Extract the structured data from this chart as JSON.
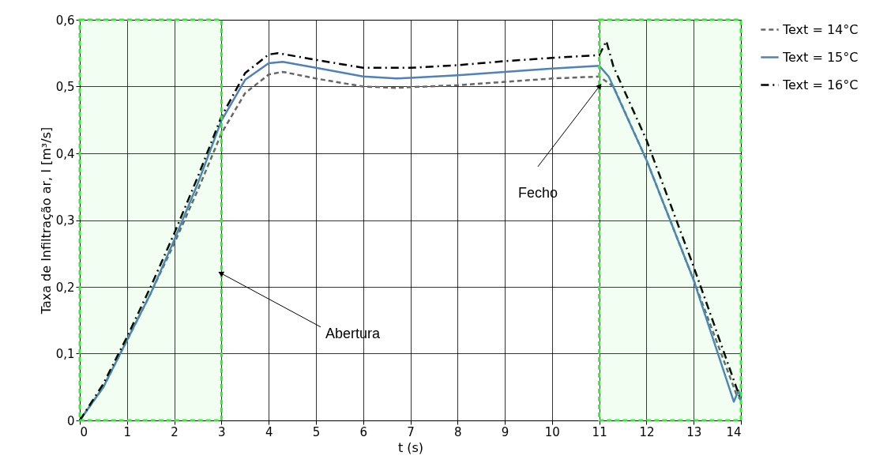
{
  "chart_data": {
    "type": "line",
    "xlabel": "t (s)",
    "ylabel": "Taxa de Infiltração ar, I [m³/s]",
    "xlim": [
      0,
      14
    ],
    "xticks": [
      0,
      1,
      2,
      3,
      4,
      5,
      6,
      7,
      8,
      9,
      10,
      11,
      12,
      13,
      14
    ],
    "ylim": [
      0,
      0.6
    ],
    "yticks": [
      0,
      {
        "value": 0.1,
        "label": "0,1"
      },
      {
        "value": 0.2,
        "label": "0,2"
      },
      {
        "value": 0.3,
        "label": "0,3"
      },
      {
        "value": 0.4,
        "label": "0,4"
      },
      {
        "value": 0.5,
        "label": "0,5"
      },
      {
        "value": 0.6,
        "label": "0,6"
      }
    ],
    "grid": true,
    "legend": "top right",
    "marker": "none",
    "series": [
      {
        "name": "Text = 14°C",
        "color": "#666666",
        "line_style": "dashed",
        "x": [
          0,
          0.5,
          1,
          1.5,
          2,
          2.5,
          3,
          3.5,
          4,
          4.3,
          5,
          6,
          6.7,
          7,
          8,
          9,
          10,
          11,
          11.3,
          12,
          13,
          13.9,
          14
        ],
        "values": [
          0,
          0.05,
          0.12,
          0.19,
          0.265,
          0.345,
          0.43,
          0.49,
          0.518,
          0.522,
          0.512,
          0.5,
          0.498,
          0.499,
          0.502,
          0.507,
          0.512,
          0.515,
          0.5,
          0.39,
          0.21,
          0.04,
          0.03
        ]
      },
      {
        "name": "Text = 15°C",
        "color": "#4f81bd",
        "line_style": "solid",
        "x": [
          0,
          0.5,
          1,
          1.5,
          2,
          2.5,
          3,
          3.5,
          4,
          4.3,
          5,
          6,
          6.7,
          7,
          8,
          9,
          10,
          11,
          11.2,
          12,
          13,
          13.85,
          13.95,
          14
        ],
        "values": [
          0,
          0.05,
          0.12,
          0.19,
          0.27,
          0.355,
          0.449,
          0.51,
          0.535,
          0.537,
          0.528,
          0.515,
          0.512,
          0.513,
          0.517,
          0.522,
          0.527,
          0.531,
          0.515,
          0.39,
          0.21,
          0.028,
          0.045,
          0.03
        ]
      },
      {
        "name": "Text = 16°C",
        "color": "#000000",
        "line_style": "dashdot",
        "x": [
          0,
          0.5,
          1,
          1.5,
          2,
          2.5,
          3,
          3.5,
          4,
          4.2,
          5,
          6,
          7,
          8,
          9,
          10,
          11,
          11.15,
          11.3,
          12,
          13,
          13.9,
          14
        ],
        "values": [
          0,
          0.055,
          0.125,
          0.2,
          0.28,
          0.365,
          0.455,
          0.52,
          0.548,
          0.55,
          0.54,
          0.528,
          0.528,
          0.532,
          0.538,
          0.543,
          0.547,
          0.568,
          0.53,
          0.42,
          0.23,
          0.05,
          0.03
        ]
      }
    ],
    "bands": [
      {
        "axis": "x",
        "from": 0,
        "to": 3,
        "color": "#33ee33"
      },
      {
        "axis": "x",
        "from": 11,
        "to": 14,
        "color": "#33ee33"
      }
    ],
    "annotations": [
      {
        "text": "Abertura",
        "x": 3,
        "y": 0.22
      },
      {
        "text": "Fecho",
        "x": 11,
        "y": 0.5
      }
    ]
  }
}
